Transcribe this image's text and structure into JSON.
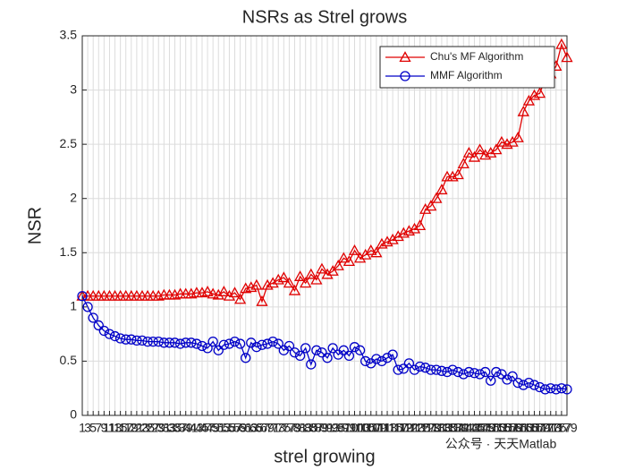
{
  "chart_data": {
    "type": "line",
    "title": "NSRs as Strel grows",
    "xlabel": "strel growing",
    "ylabel": "NSR",
    "x": [
      1,
      3,
      5,
      7,
      9,
      11,
      13,
      15,
      17,
      19,
      21,
      23,
      25,
      27,
      29,
      31,
      33,
      35,
      37,
      39,
      41,
      43,
      45,
      47,
      49,
      51,
      53,
      55,
      57,
      59,
      61,
      63,
      65,
      67,
      69,
      71,
      73,
      75,
      77,
      79,
      81,
      83,
      85,
      87,
      89,
      91,
      93,
      95,
      97,
      99,
      101,
      103,
      105,
      107,
      109,
      111,
      113,
      115,
      117,
      119,
      121,
      123,
      125,
      127,
      129,
      131,
      133,
      135,
      137,
      139,
      141,
      143,
      145,
      147,
      149,
      151,
      153,
      155,
      157,
      159,
      161,
      163,
      165,
      167,
      169,
      171,
      173,
      175,
      177,
      179
    ],
    "series": [
      {
        "name": "Chu's MF Algorithm",
        "color": "#e00000",
        "marker": "triangle",
        "values": [
          1.1,
          1.1,
          1.1,
          1.1,
          1.1,
          1.1,
          1.1,
          1.1,
          1.1,
          1.1,
          1.1,
          1.1,
          1.1,
          1.1,
          1.1,
          1.11,
          1.11,
          1.11,
          1.12,
          1.12,
          1.12,
          1.13,
          1.13,
          1.14,
          1.12,
          1.11,
          1.14,
          1.1,
          1.13,
          1.07,
          1.17,
          1.18,
          1.2,
          1.05,
          1.2,
          1.22,
          1.25,
          1.27,
          1.22,
          1.15,
          1.28,
          1.22,
          1.3,
          1.25,
          1.35,
          1.3,
          1.33,
          1.38,
          1.45,
          1.42,
          1.52,
          1.45,
          1.48,
          1.52,
          1.5,
          1.58,
          1.6,
          1.62,
          1.65,
          1.68,
          1.7,
          1.72,
          1.75,
          1.9,
          1.93,
          2.0,
          2.08,
          2.2,
          2.2,
          2.22,
          2.32,
          2.42,
          2.38,
          2.45,
          2.4,
          2.42,
          2.45,
          2.52,
          2.5,
          2.52,
          2.56,
          2.8,
          2.9,
          2.95,
          2.97,
          3.1,
          3.15,
          3.22,
          3.42,
          3.3
        ]
      },
      {
        "name": "MMF Algorithm",
        "color": "#0000c8",
        "marker": "circle",
        "values": [
          1.1,
          1.0,
          0.9,
          0.83,
          0.78,
          0.75,
          0.73,
          0.71,
          0.7,
          0.7,
          0.69,
          0.69,
          0.68,
          0.68,
          0.68,
          0.67,
          0.67,
          0.67,
          0.66,
          0.67,
          0.67,
          0.66,
          0.64,
          0.62,
          0.68,
          0.6,
          0.65,
          0.66,
          0.68,
          0.66,
          0.53,
          0.67,
          0.63,
          0.65,
          0.66,
          0.68,
          0.66,
          0.6,
          0.64,
          0.58,
          0.55,
          0.62,
          0.47,
          0.6,
          0.58,
          0.53,
          0.62,
          0.56,
          0.6,
          0.55,
          0.63,
          0.6,
          0.5,
          0.48,
          0.52,
          0.5,
          0.53,
          0.56,
          0.42,
          0.43,
          0.48,
          0.42,
          0.45,
          0.44,
          0.42,
          0.42,
          0.41,
          0.4,
          0.42,
          0.4,
          0.38,
          0.4,
          0.39,
          0.38,
          0.4,
          0.32,
          0.4,
          0.38,
          0.33,
          0.36,
          0.3,
          0.28,
          0.3,
          0.28,
          0.26,
          0.24,
          0.25,
          0.24,
          0.25,
          0.24
        ]
      }
    ],
    "xlim": [
      1,
      179
    ],
    "ylim": [
      0,
      3.5
    ],
    "xticks": [
      1,
      3,
      5,
      7,
      9,
      11,
      13,
      15,
      17,
      19,
      21,
      23,
      25,
      27,
      29,
      31,
      33,
      35,
      37,
      39,
      41,
      43,
      45,
      47,
      49,
      51,
      53,
      55,
      57,
      59,
      61,
      63,
      65,
      67,
      69,
      71,
      73,
      75,
      77,
      79,
      81,
      83,
      85,
      87,
      89,
      91,
      93,
      95,
      97,
      99,
      101,
      103,
      105,
      107,
      109,
      111,
      113,
      115,
      117,
      119,
      121,
      123,
      125,
      127,
      129,
      131,
      133,
      135,
      137,
      139,
      141,
      143,
      145,
      147,
      149,
      151,
      153,
      155,
      157,
      159,
      161,
      163,
      165,
      167,
      169,
      171,
      173,
      175,
      177,
      179
    ],
    "yticks": [
      0,
      0.5,
      1,
      1.5,
      2,
      2.5,
      3,
      3.5
    ],
    "grid": true,
    "legend": "top-right",
    "watermark": "公众号 · 天天Matlab"
  }
}
